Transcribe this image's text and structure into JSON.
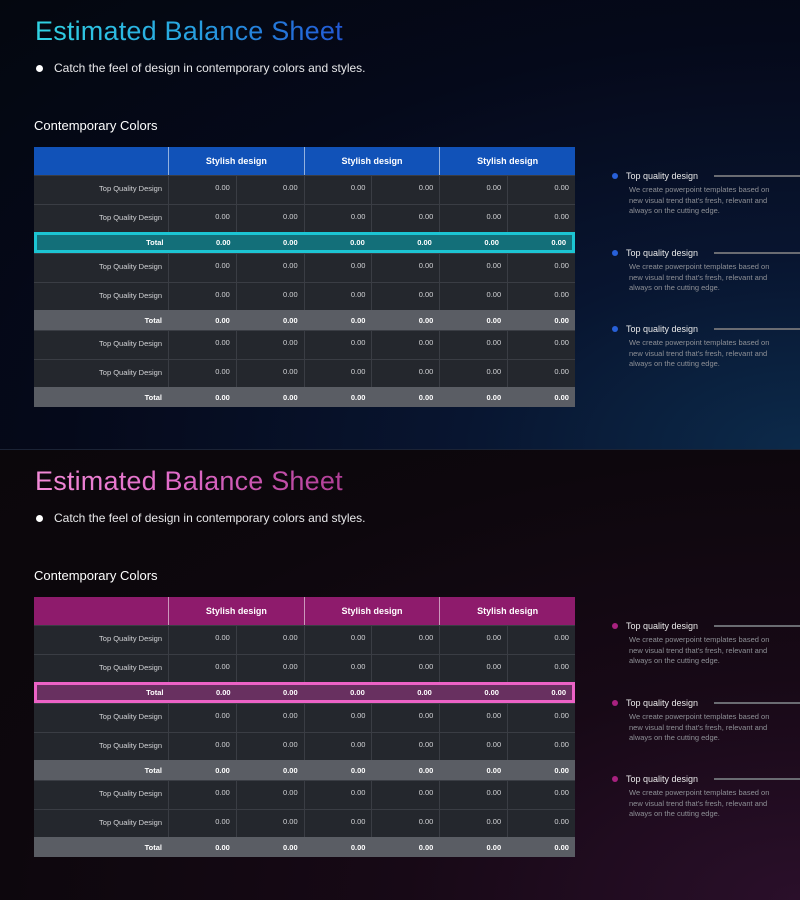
{
  "slides": [
    {
      "theme": "blue",
      "title": "Estimated Balance Sheet",
      "subtitle": "Catch the feel of design in contemporary colors and styles.",
      "section_heading": "Contemporary Colors",
      "table": {
        "group_headers": [
          "Stylish design",
          "Stylish design",
          "Stylish design"
        ],
        "rows": [
          {
            "label": "Top Quality Design",
            "values": [
              "0.00",
              "0.00",
              "0.00",
              "0.00",
              "0.00",
              "0.00"
            ]
          },
          {
            "label": "Top Quality Design",
            "values": [
              "0.00",
              "0.00",
              "0.00",
              "0.00",
              "0.00",
              "0.00"
            ]
          },
          {
            "label": "Total",
            "values": [
              "0.00",
              "0.00",
              "0.00",
              "0.00",
              "0.00",
              "0.00"
            ]
          },
          {
            "label": "Top Quality Design",
            "values": [
              "0.00",
              "0.00",
              "0.00",
              "0.00",
              "0.00",
              "0.00"
            ]
          },
          {
            "label": "Top Quality Design",
            "values": [
              "0.00",
              "0.00",
              "0.00",
              "0.00",
              "0.00",
              "0.00"
            ]
          },
          {
            "label": "Total",
            "values": [
              "0.00",
              "0.00",
              "0.00",
              "0.00",
              "0.00",
              "0.00"
            ]
          },
          {
            "label": "Top Quality Design",
            "values": [
              "0.00",
              "0.00",
              "0.00",
              "0.00",
              "0.00",
              "0.00"
            ]
          },
          {
            "label": "Top Quality Design",
            "values": [
              "0.00",
              "0.00",
              "0.00",
              "0.00",
              "0.00",
              "0.00"
            ]
          },
          {
            "label": "Total",
            "values": [
              "0.00",
              "0.00",
              "0.00",
              "0.00",
              "0.00",
              "0.00"
            ]
          }
        ]
      },
      "side_items": [
        {
          "title": "Top quality design",
          "desc": "We create powerpoint templates based on new visual trend that's fresh, relevant and always on the cutting edge."
        },
        {
          "title": "Top quality design",
          "desc": "We create powerpoint templates based on new visual trend that's fresh, relevant and always on the cutting edge."
        },
        {
          "title": "Top quality design",
          "desc": "We create powerpoint templates based on new visual trend that's fresh, relevant and always on the cutting edge."
        }
      ]
    },
    {
      "theme": "pink",
      "title": "Estimated Balance Sheet",
      "subtitle": "Catch the feel of design in contemporary colors and styles.",
      "section_heading": "Contemporary Colors",
      "table": {
        "group_headers": [
          "Stylish design",
          "Stylish design",
          "Stylish design"
        ],
        "rows": [
          {
            "label": "Top Quality Design",
            "values": [
              "0.00",
              "0.00",
              "0.00",
              "0.00",
              "0.00",
              "0.00"
            ]
          },
          {
            "label": "Top Quality Design",
            "values": [
              "0.00",
              "0.00",
              "0.00",
              "0.00",
              "0.00",
              "0.00"
            ]
          },
          {
            "label": "Total",
            "values": [
              "0.00",
              "0.00",
              "0.00",
              "0.00",
              "0.00",
              "0.00"
            ]
          },
          {
            "label": "Top Quality Design",
            "values": [
              "0.00",
              "0.00",
              "0.00",
              "0.00",
              "0.00",
              "0.00"
            ]
          },
          {
            "label": "Top Quality Design",
            "values": [
              "0.00",
              "0.00",
              "0.00",
              "0.00",
              "0.00",
              "0.00"
            ]
          },
          {
            "label": "Total",
            "values": [
              "0.00",
              "0.00",
              "0.00",
              "0.00",
              "0.00",
              "0.00"
            ]
          },
          {
            "label": "Top Quality Design",
            "values": [
              "0.00",
              "0.00",
              "0.00",
              "0.00",
              "0.00",
              "0.00"
            ]
          },
          {
            "label": "Top Quality Design",
            "values": [
              "0.00",
              "0.00",
              "0.00",
              "0.00",
              "0.00",
              "0.00"
            ]
          },
          {
            "label": "Total",
            "values": [
              "0.00",
              "0.00",
              "0.00",
              "0.00",
              "0.00",
              "0.00"
            ]
          }
        ]
      },
      "side_items": [
        {
          "title": "Top quality design",
          "desc": "We create powerpoint templates based on new visual trend that's fresh, relevant and always on the cutting edge."
        },
        {
          "title": "Top quality design",
          "desc": "We create powerpoint templates based on new visual trend that's fresh, relevant and always on the cutting edge."
        },
        {
          "title": "Top quality design",
          "desc": "We create powerpoint templates based on new visual trend that's fresh, relevant and always on the cutting edge."
        }
      ]
    }
  ]
}
